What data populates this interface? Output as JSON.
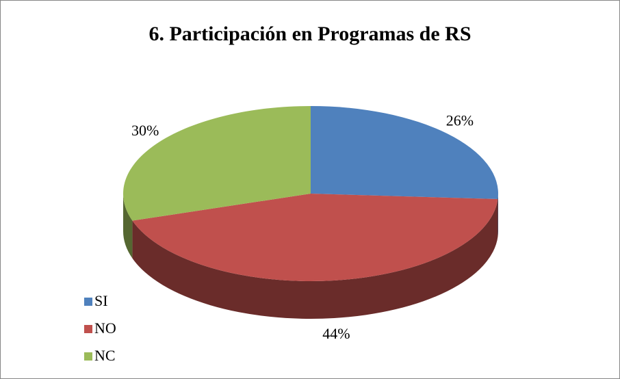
{
  "chart_data": {
    "type": "pie",
    "title": "6. Participación en Programas de RS",
    "categories": [
      "SI",
      "NO",
      "NC"
    ],
    "values": [
      26,
      44,
      30
    ],
    "value_labels": [
      "26%",
      "44%",
      "30%"
    ],
    "colors": [
      "#4f81bd",
      "#c0504d",
      "#9bbb59"
    ],
    "legend": "bottom-left"
  }
}
